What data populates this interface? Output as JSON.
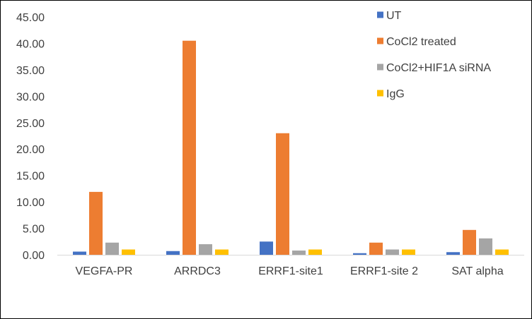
{
  "chart_data": {
    "type": "bar",
    "title": "",
    "xlabel": "",
    "ylabel": "",
    "categories": [
      "VEGFA-PR",
      "ARRDC3",
      "ERRF1-site1",
      "ERRF1-site 2",
      "SAT alpha"
    ],
    "ylim": [
      0,
      45
    ],
    "yticks": [
      "0.00",
      "5.00",
      "10.00",
      "15.00",
      "20.00",
      "25.00",
      "30.00",
      "35.00",
      "40.00",
      "45.00"
    ],
    "grid": false,
    "legend_position": "top-right",
    "series": [
      {
        "name": "UT",
        "color": "#4472C4",
        "values": [
          0.6,
          0.7,
          2.5,
          0.3,
          0.5
        ]
      },
      {
        "name": "CoCl2 treated",
        "color": "#ED7D31",
        "values": [
          11.9,
          40.5,
          23.0,
          2.3,
          4.7
        ]
      },
      {
        "name": "CoCl2+HIF1A siRNA",
        "color": "#A5A5A5",
        "values": [
          2.3,
          2.0,
          0.8,
          1.0,
          3.1
        ]
      },
      {
        "name": "IgG",
        "color": "#FFC000",
        "values": [
          1.0,
          1.0,
          1.0,
          1.0,
          1.0
        ]
      }
    ]
  }
}
